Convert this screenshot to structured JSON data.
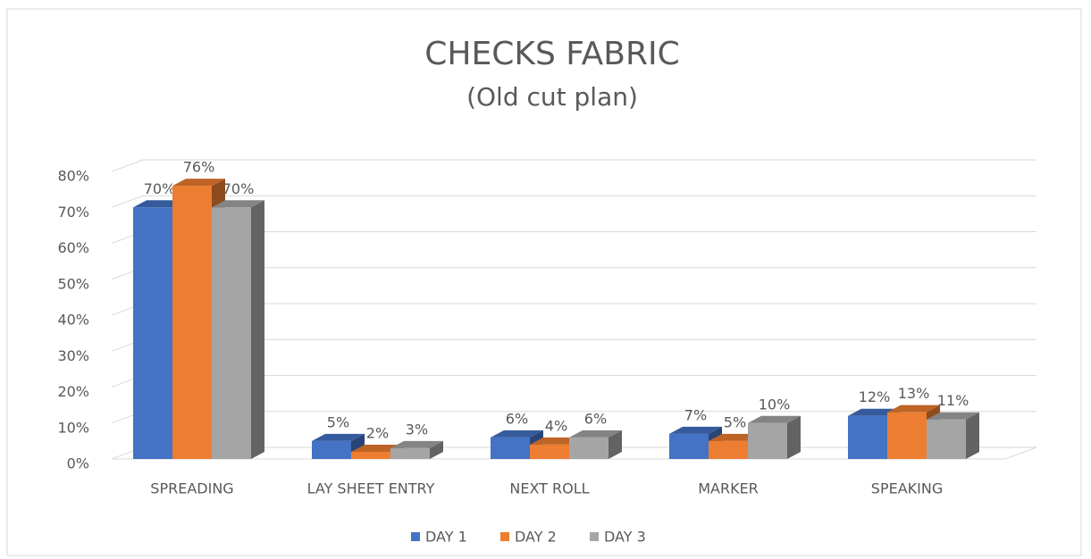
{
  "chart_data": {
    "type": "bar3d",
    "title": "CHECKS FABRIC",
    "subtitle": "(Old cut plan)",
    "categories": [
      "SPREADING",
      "LAY SHEET ENTRY",
      "NEXT ROLL",
      "MARKER",
      "SPEAKING"
    ],
    "series": [
      {
        "name": "DAY 1",
        "color": "#4472c4",
        "values": [
          70,
          5,
          6,
          7,
          12
        ],
        "value_labels": [
          "70%",
          "5%",
          "6%",
          "7%",
          "12%"
        ]
      },
      {
        "name": "DAY 2",
        "color": "#ed7d31",
        "values": [
          76,
          2,
          4,
          5,
          13
        ],
        "value_labels": [
          "76%",
          "2%",
          "4%",
          "5%",
          "13%"
        ]
      },
      {
        "name": "DAY 3",
        "color": "#a5a5a5",
        "values": [
          70,
          3,
          6,
          10,
          11
        ],
        "value_labels": [
          "70%",
          "3%",
          "6%",
          "10%",
          "11%"
        ]
      }
    ],
    "ylim": [
      0,
      80
    ],
    "yticks": [
      {
        "value": 0,
        "label": "0%"
      },
      {
        "value": 10,
        "label": "10%"
      },
      {
        "value": 20,
        "label": "20%"
      },
      {
        "value": 30,
        "label": "30%"
      },
      {
        "value": 40,
        "label": "40%"
      },
      {
        "value": 50,
        "label": "50%"
      },
      {
        "value": 60,
        "label": "60%"
      },
      {
        "value": 70,
        "label": "70%"
      },
      {
        "value": 80,
        "label": "80%"
      }
    ],
    "grid": true,
    "legend": "bottom"
  }
}
